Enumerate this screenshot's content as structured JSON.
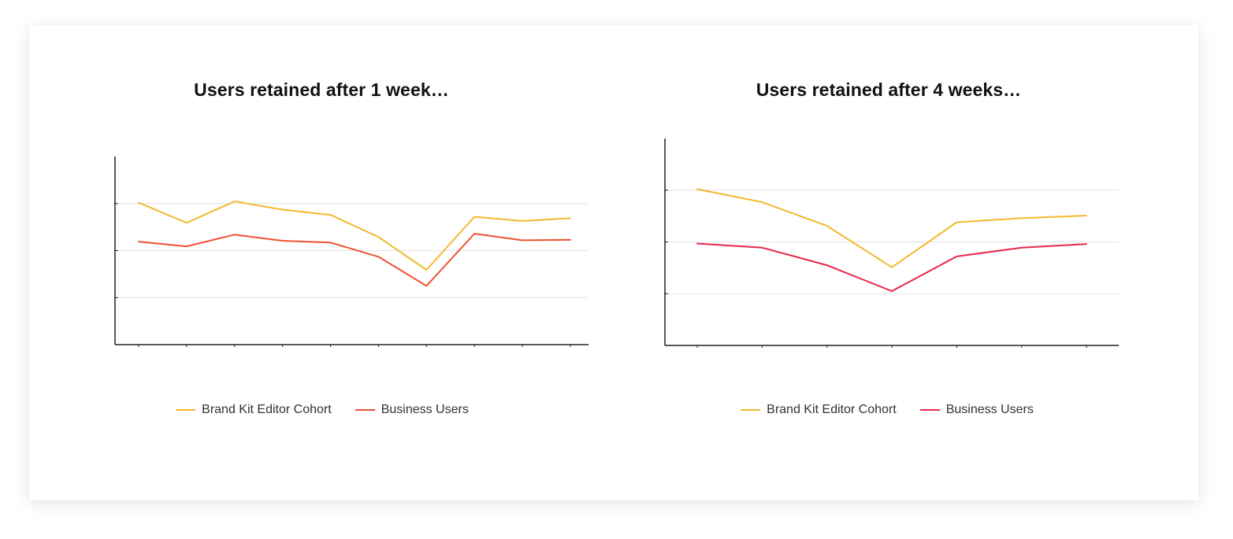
{
  "chart_data": [
    {
      "type": "line",
      "title": "Users retained after 1 week…",
      "x": [
        1,
        2,
        3,
        4,
        5,
        6,
        7,
        8,
        9,
        10
      ],
      "ylim": [
        0,
        4
      ],
      "yticks": [
        0,
        1,
        2,
        3
      ],
      "grid": true,
      "legend_position": "bottom",
      "series": [
        {
          "name": "Brand Kit Editor Cohort",
          "color": "#F4B82E",
          "values": [
            3.02,
            2.59,
            3.05,
            2.87,
            2.76,
            2.29,
            1.59,
            2.72,
            2.63,
            2.69
          ]
        },
        {
          "name": "Business Users",
          "color": "#F0502F",
          "values": [
            2.19,
            2.09,
            2.34,
            2.21,
            2.17,
            1.87,
            1.25,
            2.36,
            2.22,
            2.23
          ]
        }
      ]
    },
    {
      "type": "line",
      "title": "Users retained after 4 weeks…",
      "x": [
        1,
        2,
        3,
        4,
        5,
        6,
        7
      ],
      "ylim": [
        0,
        4
      ],
      "yticks": [
        0,
        1,
        2,
        3
      ],
      "grid": true,
      "legend_position": "bottom",
      "series": [
        {
          "name": "Brand Kit Editor Cohort",
          "color": "#F4B82E",
          "values": [
            3.02,
            2.77,
            2.31,
            1.51,
            2.38,
            2.46,
            2.51
          ]
        },
        {
          "name": "Business Users",
          "color": "#E8264A",
          "values": [
            1.97,
            1.89,
            1.55,
            1.05,
            1.72,
            1.89,
            1.96
          ]
        }
      ]
    }
  ]
}
